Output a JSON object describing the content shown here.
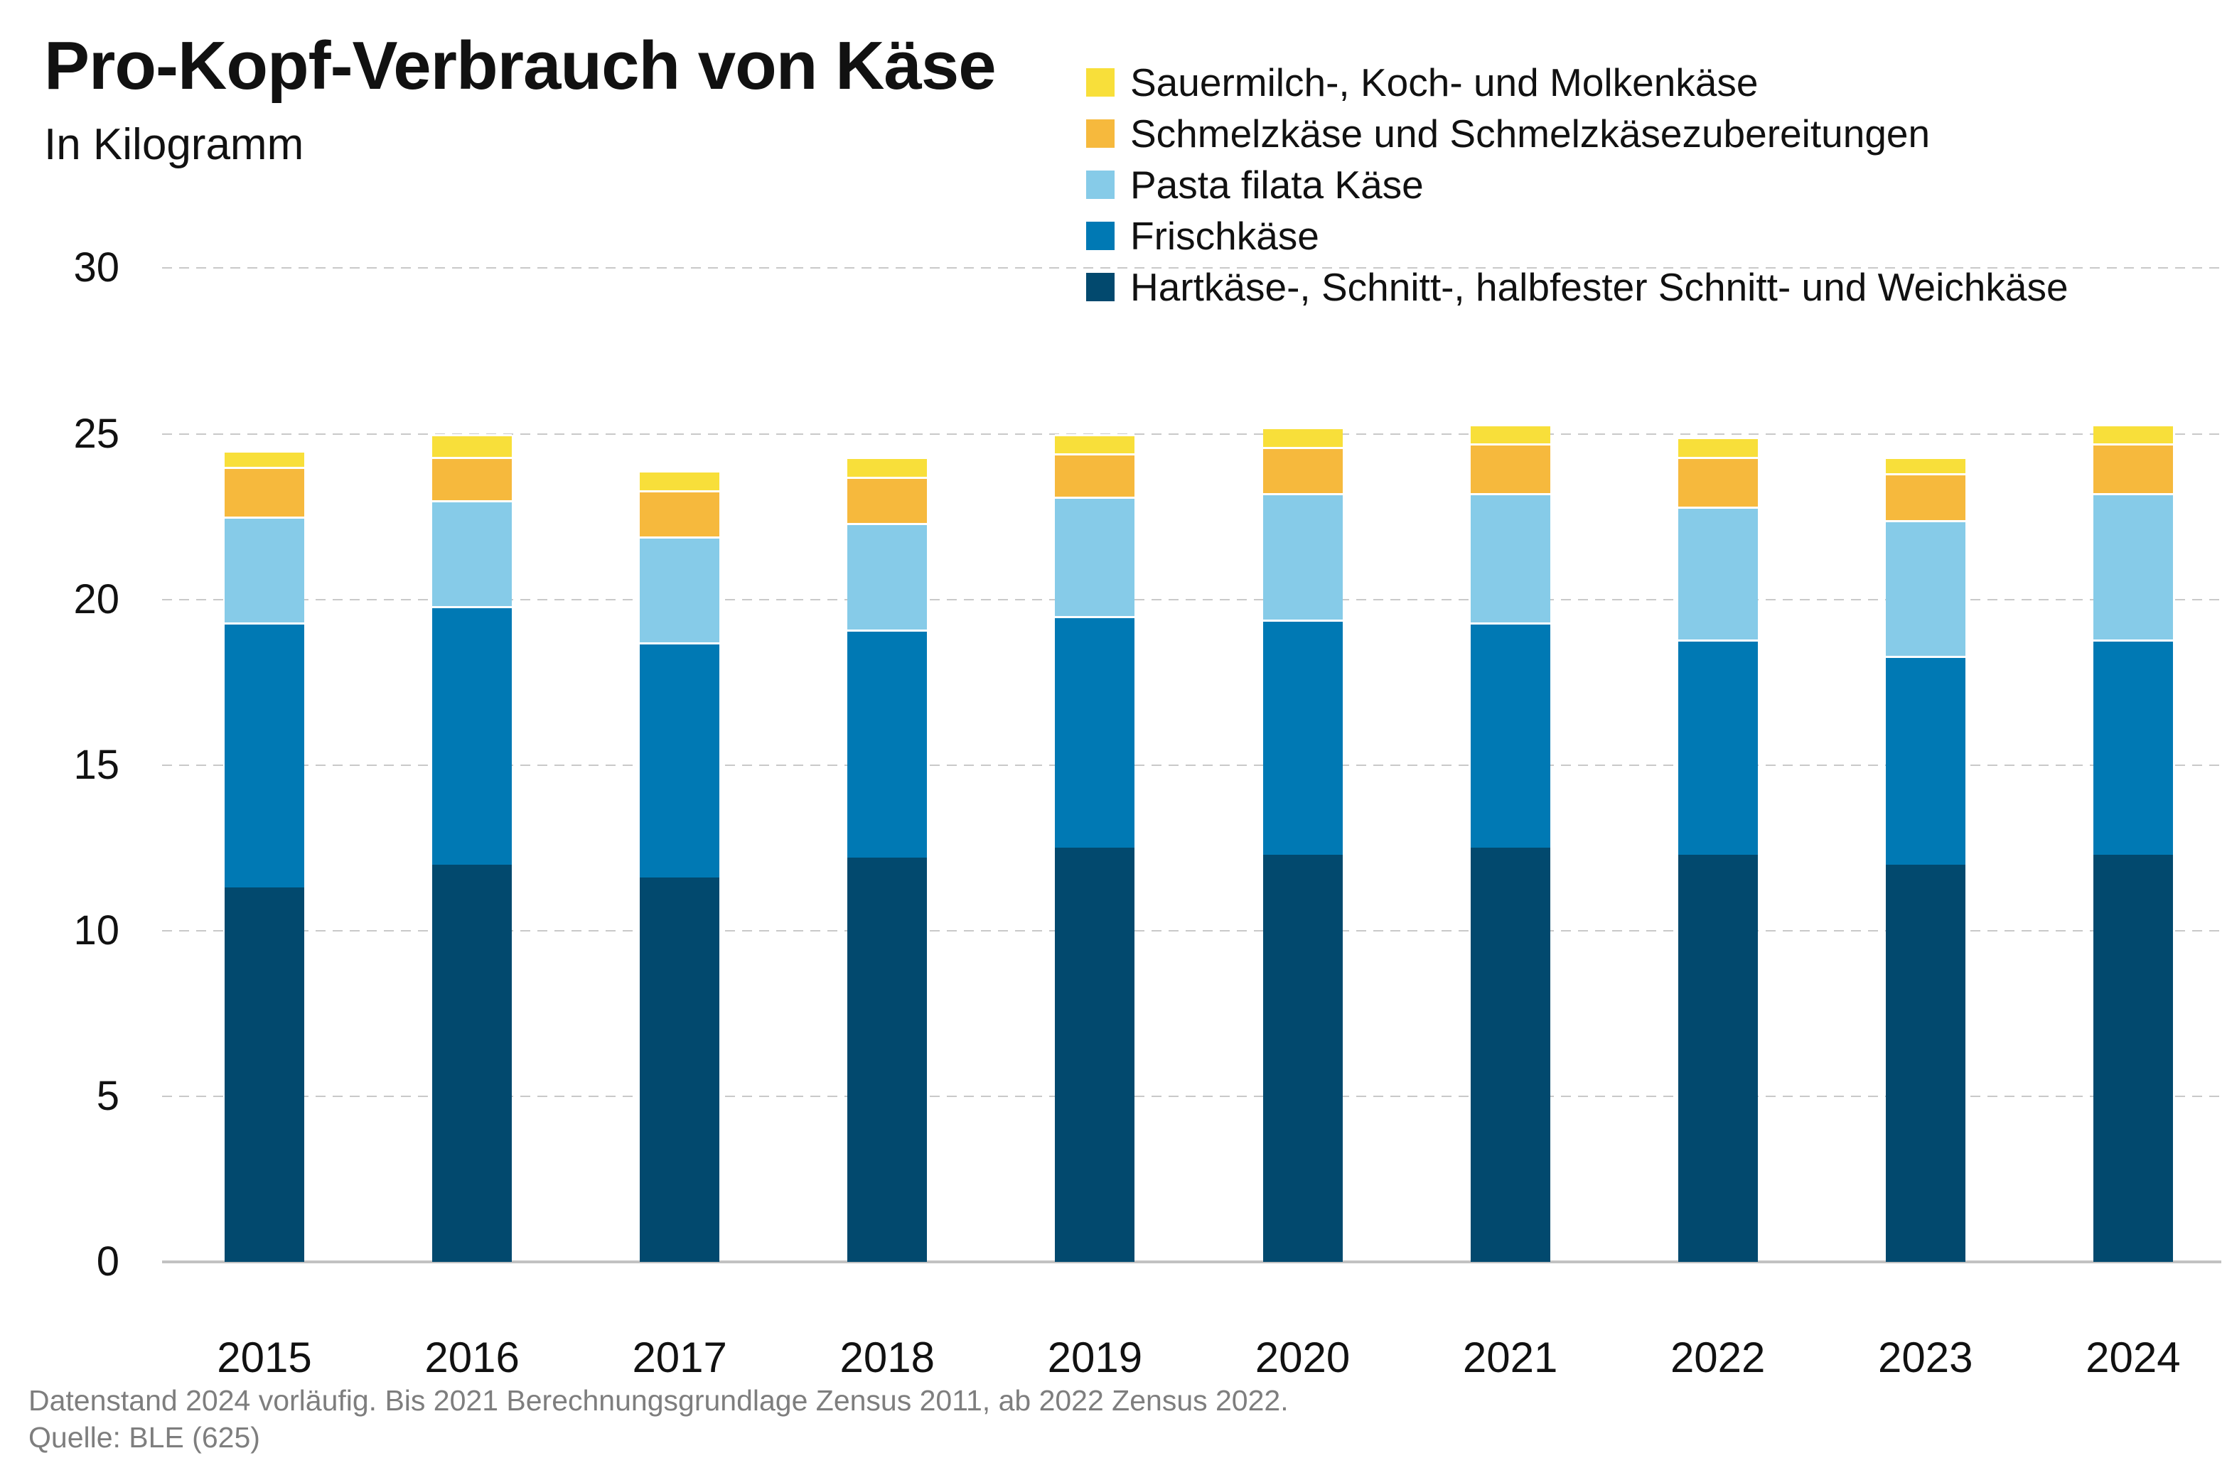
{
  "header": {
    "title": "Pro-Kopf-Verbrauch von Käse",
    "subtitle": "In Kilogramm"
  },
  "footer": {
    "line1": "Datenstand 2024 vorläufig. Bis 2021 Berechnungsgrundlage Zensus 2011, ab 2022 Zensus 2022.",
    "line2": "Quelle: BLE (625)"
  },
  "chart_data": {
    "type": "bar",
    "stacked": true,
    "title": "Pro-Kopf-Verbrauch von Käse",
    "subtitle": "In Kilogramm",
    "unit": "kg",
    "categories": [
      "2015",
      "2016",
      "2017",
      "2018",
      "2019",
      "2020",
      "2021",
      "2022",
      "2023",
      "2024"
    ],
    "series": [
      {
        "name": "Hartkäse-, Schnitt-, halbfester Schnitt- und Weichkäse",
        "color": "#02496e",
        "values": [
          11.3,
          12.0,
          11.6,
          12.2,
          12.5,
          12.3,
          12.5,
          12.3,
          12.0,
          12.3
        ]
      },
      {
        "name": "Frischkäse",
        "color": "#0079b4",
        "values": [
          8.0,
          7.8,
          7.1,
          6.9,
          7.0,
          7.1,
          6.8,
          6.5,
          6.3,
          6.5
        ]
      },
      {
        "name": "Pasta filata Käse",
        "color": "#86cbe8",
        "values": [
          3.2,
          3.2,
          3.2,
          3.2,
          3.6,
          3.8,
          3.9,
          4.0,
          4.1,
          4.4
        ]
      },
      {
        "name": "Schmelzkäse und Schmelzkäsezubereitungen",
        "color": "#f6b93d",
        "values": [
          1.5,
          1.3,
          1.4,
          1.4,
          1.3,
          1.4,
          1.5,
          1.5,
          1.4,
          1.5
        ]
      },
      {
        "name": "Sauermilch-, Koch- und Molkenkäse",
        "color": "#f8df3a",
        "values": [
          0.5,
          0.7,
          0.6,
          0.6,
          0.6,
          0.6,
          0.6,
          0.6,
          0.5,
          0.6
        ]
      }
    ],
    "totals": [
      24.5,
      25.0,
      23.9,
      24.3,
      25.0,
      25.2,
      25.3,
      24.9,
      24.3,
      25.3
    ],
    "ylabel": "",
    "xlabel": "",
    "ylim": [
      0,
      30
    ],
    "yticks": [
      0,
      5,
      10,
      15,
      20,
      25,
      30
    ],
    "grid": "dashed horizontal",
    "legend_position": "top-right",
    "gridline_color": "#c9c9c9",
    "baseline_color": "#c2c2c2"
  }
}
